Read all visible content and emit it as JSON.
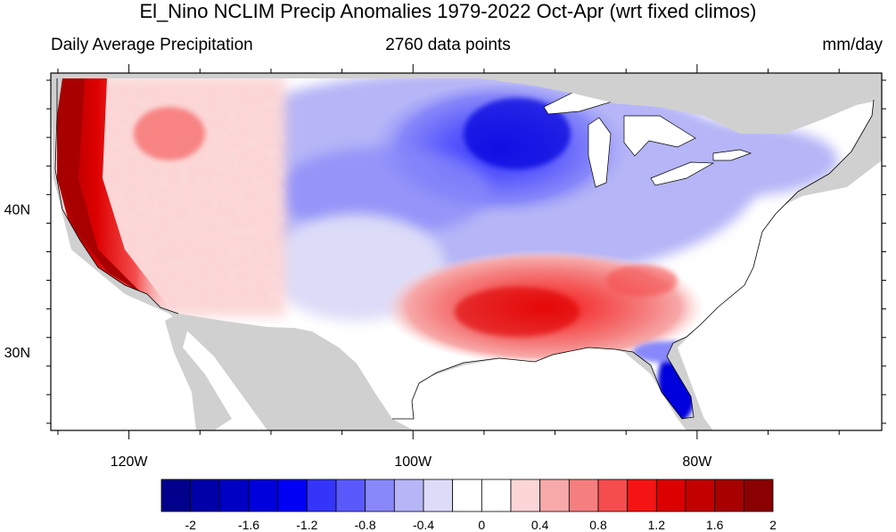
{
  "title": "El_Nino NCLIM Precip Anomalies 1979-2022 Oct-Apr (wrt fixed climos)",
  "left_subtitle": "Daily Average Precipitation",
  "center_subtitle": "2760 data points",
  "units": "mm/day",
  "map": {
    "region": "Contiguous United States",
    "lon_range": [
      -125.5,
      -67
    ],
    "lat_range": [
      24.5,
      49.5
    ],
    "x_ticks": [
      {
        "lon": -120,
        "label": "120W"
      },
      {
        "lon": -100,
        "label": "100W"
      },
      {
        "lon": -80,
        "label": "80W"
      }
    ],
    "y_ticks": [
      {
        "lat": 40,
        "label": "40N"
      },
      {
        "lat": 30,
        "label": "30N"
      }
    ],
    "missing_color": "#d0d0d0",
    "water_color": "#ffffff"
  },
  "colorbar": {
    "colors": [
      "#00008b",
      "#0000a8",
      "#0000c4",
      "#0000dc",
      "#0000f5",
      "#3535fa",
      "#5a5afc",
      "#8888fa",
      "#b5b5f7",
      "#dcdcf8",
      "#ffffff",
      "#ffffff",
      "#fcd6d6",
      "#f7a9a9",
      "#f57f7f",
      "#f54d4d",
      "#f51414",
      "#dd0000",
      "#c30000",
      "#a80000",
      "#8b0000"
    ],
    "labels": [
      "-2",
      "-1.6",
      "-1.2",
      "-0.8",
      "-0.4",
      "0",
      "0.4",
      "0.8",
      "1.2",
      "1.6",
      "2"
    ]
  }
}
